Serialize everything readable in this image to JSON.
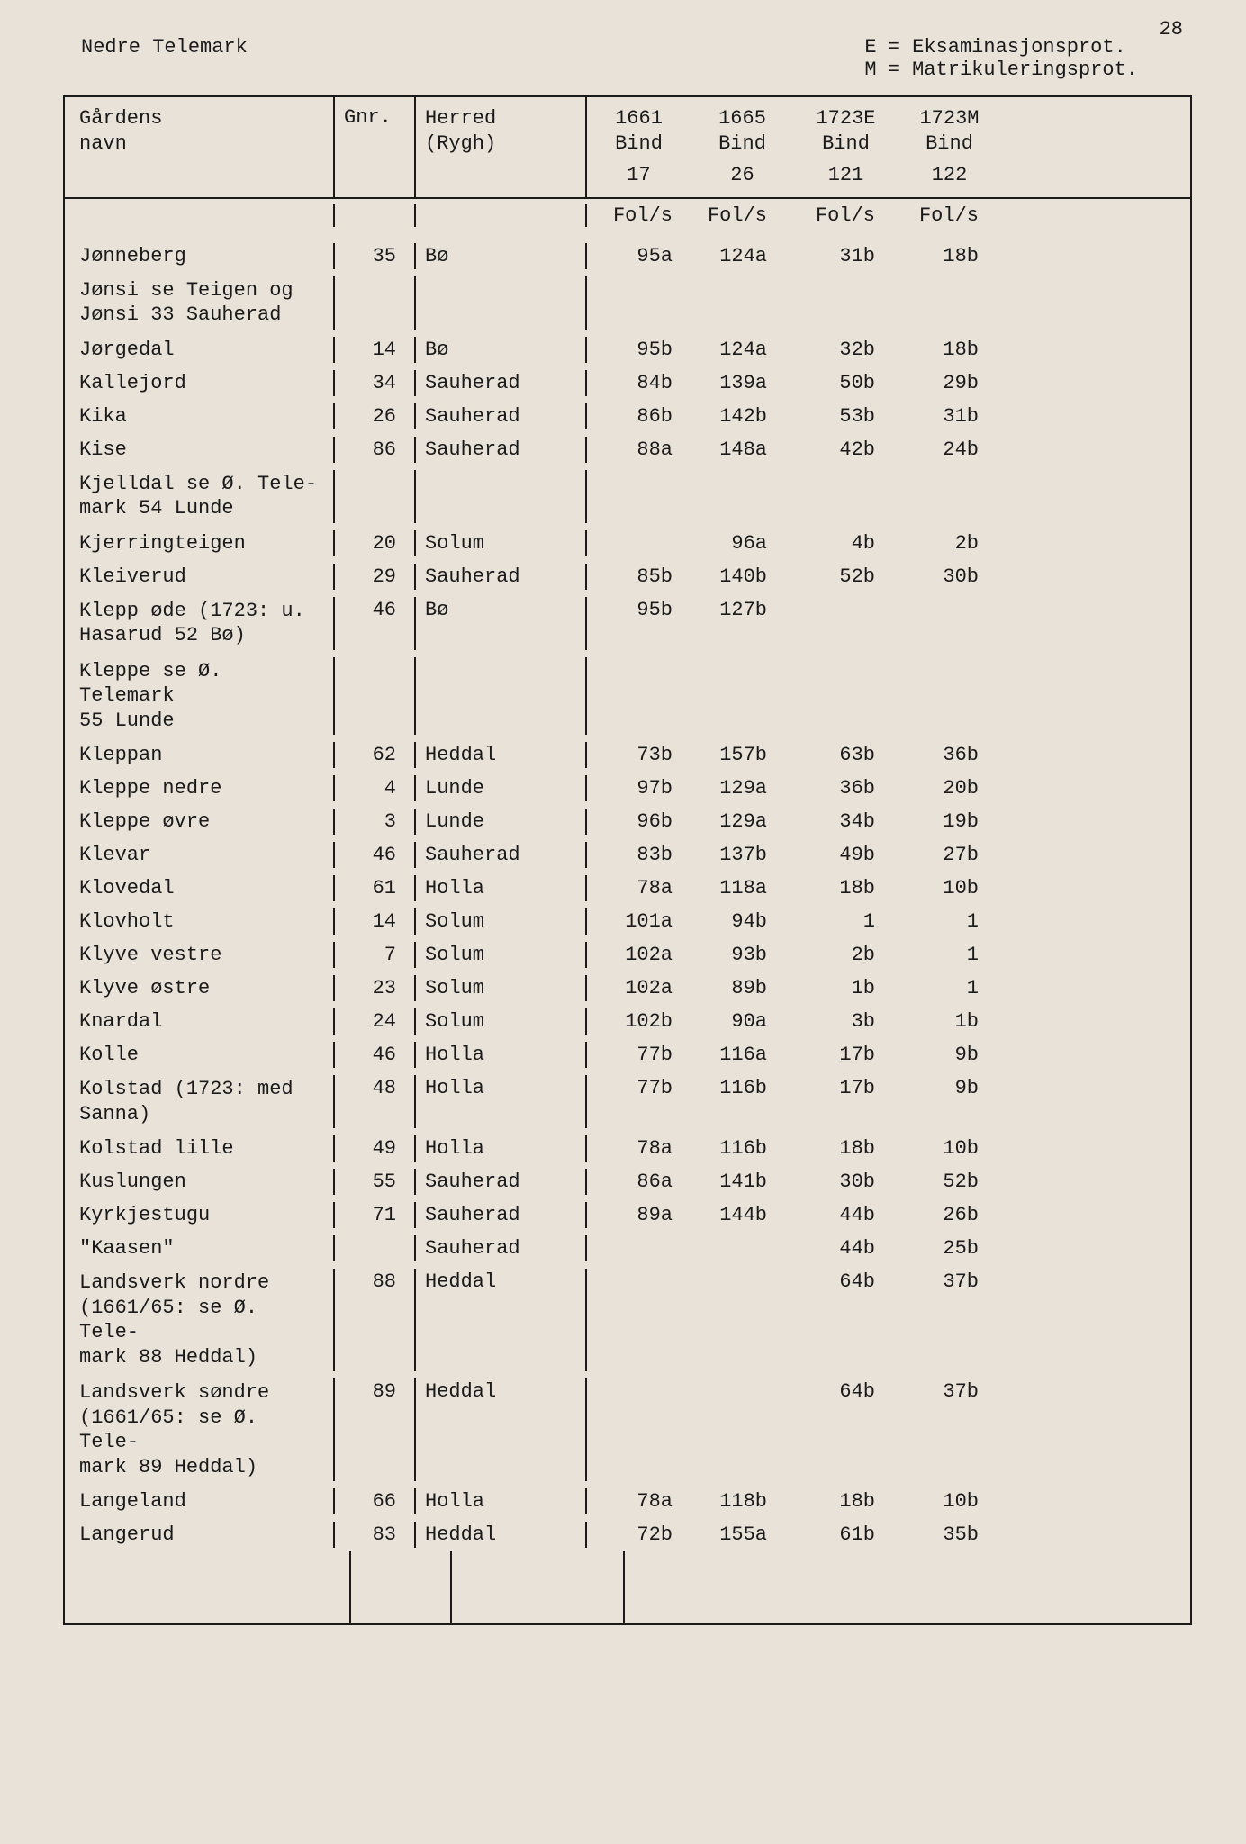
{
  "page_number": "28",
  "region_title": "Nedre Telemark",
  "legend_line1": "E = Eksaminasjonsprot.",
  "legend_line2": "M = Matrikuleringsprot.",
  "columns": {
    "c1_l1": "Gårdens",
    "c1_l2": "navn",
    "c2": "Gnr.",
    "c3_l1": "Herred",
    "c3_l2": "(Rygh)",
    "c4_l1": "1661",
    "c4_l2": "Bind",
    "c4_l3": "17",
    "c5_l1": "1665",
    "c5_l2": "Bind",
    "c5_l3": "26",
    "c6_l1": "1723E",
    "c6_l2": "Bind",
    "c6_l3": "121",
    "c7_l1": "1723M",
    "c7_l2": "Bind",
    "c7_l3": "122"
  },
  "fols_label": "Fol/s",
  "rows": [
    {
      "name": "Jønneberg",
      "gnr": "35",
      "herred": "Bø",
      "c4": "95a",
      "c5": "124a",
      "c6": "31b",
      "c7": "18b"
    },
    {
      "name": "Jønsi se Teigen og\nJønsi 33 Sauherad",
      "gnr": "",
      "herred": "",
      "c4": "",
      "c5": "",
      "c6": "",
      "c7": ""
    },
    {
      "name": "Jørgedal",
      "gnr": "14",
      "herred": "Bø",
      "c4": "95b",
      "c5": "124a",
      "c6": "32b",
      "c7": "18b"
    },
    {
      "name": "Kallejord",
      "gnr": "34",
      "herred": "Sauherad",
      "c4": "84b",
      "c5": "139a",
      "c6": "50b",
      "c7": "29b"
    },
    {
      "name": "Kika",
      "gnr": "26",
      "herred": "Sauherad",
      "c4": "86b",
      "c5": "142b",
      "c6": "53b",
      "c7": "31b"
    },
    {
      "name": "Kise",
      "gnr": "86",
      "herred": "Sauherad",
      "c4": "88a",
      "c5": "148a",
      "c6": "42b",
      "c7": "24b"
    },
    {
      "name": "Kjelldal se Ø. Tele-\nmark 54 Lunde",
      "gnr": "",
      "herred": "",
      "c4": "",
      "c5": "",
      "c6": "",
      "c7": ""
    },
    {
      "name": "Kjerringteigen",
      "gnr": "20",
      "herred": "Solum",
      "c4": "",
      "c5": "96a",
      "c6": "4b",
      "c7": "2b"
    },
    {
      "name": "Kleiverud",
      "gnr": "29",
      "herred": "Sauherad",
      "c4": "85b",
      "c5": "140b",
      "c6": "52b",
      "c7": "30b"
    },
    {
      "name": "Klepp øde (1723: u.\nHasarud 52 Bø)",
      "gnr": "46",
      "herred": "Bø",
      "c4": "95b",
      "c5": "127b",
      "c6": "",
      "c7": ""
    },
    {
      "name": "Kleppe se Ø. Telemark\n55 Lunde",
      "gnr": "",
      "herred": "",
      "c4": "",
      "c5": "",
      "c6": "",
      "c7": ""
    },
    {
      "name": "Kleppan",
      "gnr": "62",
      "herred": "Heddal",
      "c4": "73b",
      "c5": "157b",
      "c6": "63b",
      "c7": "36b"
    },
    {
      "name": "Kleppe nedre",
      "gnr": "4",
      "herred": "Lunde",
      "c4": "97b",
      "c5": "129a",
      "c6": "36b",
      "c7": "20b"
    },
    {
      "name": "Kleppe øvre",
      "gnr": "3",
      "herred": "Lunde",
      "c4": "96b",
      "c5": "129a",
      "c6": "34b",
      "c7": "19b"
    },
    {
      "name": "Klevar",
      "gnr": "46",
      "herred": "Sauherad",
      "c4": "83b",
      "c5": "137b",
      "c6": "49b",
      "c7": "27b"
    },
    {
      "name": "Klovedal",
      "gnr": "61",
      "herred": "Holla",
      "c4": "78a",
      "c5": "118a",
      "c6": "18b",
      "c7": "10b"
    },
    {
      "name": "Klovholt",
      "gnr": "14",
      "herred": "Solum",
      "c4": "101a",
      "c5": "94b",
      "c6": "1",
      "c7": "1"
    },
    {
      "name": "Klyve vestre",
      "gnr": "7",
      "herred": "Solum",
      "c4": "102a",
      "c5": "93b",
      "c6": "2b",
      "c7": "1"
    },
    {
      "name": "Klyve østre",
      "gnr": "23",
      "herred": "Solum",
      "c4": "102a",
      "c5": "89b",
      "c6": "1b",
      "c7": "1"
    },
    {
      "name": "Knardal",
      "gnr": "24",
      "herred": "Solum",
      "c4": "102b",
      "c5": "90a",
      "c6": "3b",
      "c7": "1b"
    },
    {
      "name": "Kolle",
      "gnr": "46",
      "herred": "Holla",
      "c4": "77b",
      "c5": "116a",
      "c6": "17b",
      "c7": "9b"
    },
    {
      "name": "Kolstad (1723: med\nSanna)",
      "gnr": "48",
      "herred": "Holla",
      "c4": "77b",
      "c5": "116b",
      "c6": "17b",
      "c7": "9b"
    },
    {
      "name": "Kolstad lille",
      "gnr": "49",
      "herred": "Holla",
      "c4": "78a",
      "c5": "116b",
      "c6": "18b",
      "c7": "10b"
    },
    {
      "name": "Kuslungen",
      "gnr": "55",
      "herred": "Sauherad",
      "c4": "86a",
      "c5": "141b",
      "c6": "30b",
      "c7": "52b"
    },
    {
      "name": "Kyrkjestugu",
      "gnr": "71",
      "herred": "Sauherad",
      "c4": "89a",
      "c5": "144b",
      "c6": "44b",
      "c7": "26b"
    },
    {
      "name": "\"Kaasen\"",
      "gnr": "",
      "herred": "Sauherad",
      "c4": "",
      "c5": "",
      "c6": "44b",
      "c7": "25b"
    },
    {
      "name": "Landsverk nordre\n(1661/65: se Ø. Tele-\nmark 88 Heddal)",
      "gnr": "88",
      "herred": "Heddal",
      "c4": "",
      "c5": "",
      "c6": "64b",
      "c7": "37b"
    },
    {
      "name": "Landsverk søndre\n(1661/65: se Ø. Tele-\nmark 89 Heddal)",
      "gnr": "89",
      "herred": "Heddal",
      "c4": "",
      "c5": "",
      "c6": "64b",
      "c7": "37b"
    },
    {
      "name": "Langeland",
      "gnr": "66",
      "herred": "Holla",
      "c4": "78a",
      "c5": "118b",
      "c6": "18b",
      "c7": "10b"
    },
    {
      "name": "Langerud",
      "gnr": "83",
      "herred": "Heddal",
      "c4": "72b",
      "c5": "155a",
      "c6": "61b",
      "c7": "35b"
    }
  ]
}
